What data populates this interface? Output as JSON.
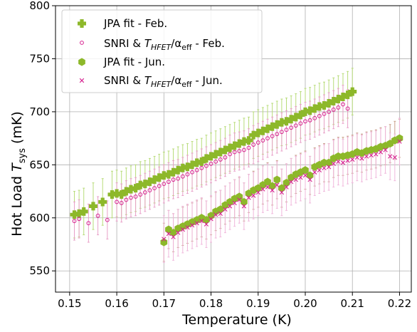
{
  "colors": {
    "jpa_feb": "#8db82a",
    "snri_feb": "#d6208f",
    "jpa_jun": "#8db82a",
    "snri_jun": "#d6208f",
    "err_feb_jpa": "#b8dc7a",
    "err_feb_snri": "#e8a0c8",
    "err_jun_jpa": "#c9a08a",
    "err_jun_snri": "#f0b8dc",
    "grid": "#b0b0b0"
  },
  "chart_data": {
    "type": "scatter",
    "xlabel": "Temperature (K)",
    "ylabel_main": "Hot Load ",
    "ylabel_italic": "T",
    "ylabel_sub": "sys",
    "ylabel_unit": " (mK)",
    "xlim": [
      0.147,
      0.2225
    ],
    "ylim": [
      530,
      800
    ],
    "xticks": [
      0.15,
      0.16,
      0.17,
      0.18,
      0.19,
      0.2,
      0.21,
      0.22
    ],
    "xtick_labels": [
      "0.15",
      "0.16",
      "0.17",
      "0.18",
      "0.19",
      "0.20",
      "0.21",
      "0.22"
    ],
    "yticks": [
      550,
      600,
      650,
      700,
      750,
      800
    ],
    "ytick_labels": [
      "550",
      "600",
      "650",
      "700",
      "750",
      "800"
    ],
    "grid": true,
    "legend_position": "top-left",
    "legend": [
      {
        "label_a": "JPA fit - Feb.",
        "label_b": "",
        "label_c": "",
        "label_d": ""
      },
      {
        "label_a": "SNRI & ",
        "label_b": "T",
        "label_c": "HFET",
        "label_d": "/α",
        "label_e": "eff",
        "label_f": " - Feb."
      },
      {
        "label_a": "JPA fit - Jun.",
        "label_b": "",
        "label_c": "",
        "label_d": ""
      },
      {
        "label_a": "SNRI & ",
        "label_b": "T",
        "label_c": "HFET",
        "label_d": "/α",
        "label_e": "eff",
        "label_f": " - Jun."
      }
    ],
    "series": [
      {
        "name": "JPA fit - Feb.",
        "marker": "plus-filled",
        "x": [
          0.151,
          0.152,
          0.153,
          0.155,
          0.157,
          0.159,
          0.16,
          0.161,
          0.162,
          0.163,
          0.164,
          0.165,
          0.166,
          0.167,
          0.168,
          0.169,
          0.17,
          0.171,
          0.172,
          0.173,
          0.174,
          0.175,
          0.176,
          0.177,
          0.178,
          0.179,
          0.18,
          0.181,
          0.182,
          0.183,
          0.184,
          0.185,
          0.186,
          0.187,
          0.188,
          0.189,
          0.19,
          0.191,
          0.192,
          0.193,
          0.194,
          0.195,
          0.196,
          0.197,
          0.198,
          0.199,
          0.2,
          0.201,
          0.202,
          0.203,
          0.204,
          0.205,
          0.206,
          0.207,
          0.208,
          0.209,
          0.21
        ],
        "y": [
          603,
          604,
          606,
          611,
          615,
          622,
          623,
          622,
          625,
          627,
          628,
          631,
          632,
          634,
          636,
          638,
          640,
          641,
          643,
          645,
          647,
          648,
          650,
          652,
          653,
          656,
          658,
          660,
          662,
          664,
          666,
          668,
          670,
          672,
          673,
          678,
          680,
          682,
          684,
          686,
          688,
          690,
          691,
          693,
          695,
          697,
          700,
          701,
          703,
          705,
          706,
          708,
          710,
          712,
          714,
          716,
          719
        ],
        "err": 22
      },
      {
        "name": "SNRI & T_HFET/α_eff - Feb.",
        "marker": "circle-open",
        "x": [
          0.151,
          0.152,
          0.154,
          0.156,
          0.158,
          0.16,
          0.161,
          0.162,
          0.163,
          0.164,
          0.165,
          0.166,
          0.167,
          0.168,
          0.169,
          0.17,
          0.171,
          0.172,
          0.173,
          0.174,
          0.175,
          0.176,
          0.177,
          0.178,
          0.179,
          0.18,
          0.181,
          0.182,
          0.183,
          0.184,
          0.185,
          0.186,
          0.187,
          0.188,
          0.189,
          0.19,
          0.191,
          0.192,
          0.193,
          0.194,
          0.195,
          0.196,
          0.197,
          0.198,
          0.199,
          0.2,
          0.201,
          0.202,
          0.203,
          0.204,
          0.205,
          0.206,
          0.207,
          0.208,
          0.209
        ],
        "y": [
          597,
          599,
          595,
          602,
          598,
          615,
          614,
          617,
          619,
          620,
          622,
          624,
          626,
          628,
          630,
          632,
          634,
          636,
          637,
          639,
          641,
          643,
          645,
          647,
          649,
          651,
          653,
          655,
          657,
          660,
          662,
          663,
          664,
          666,
          669,
          671,
          673,
          675,
          677,
          679,
          681,
          683,
          685,
          687,
          689,
          691,
          692,
          694,
          696,
          698,
          700,
          702,
          704,
          707,
          703
        ],
        "err": 18
      },
      {
        "name": "JPA fit - Jun.",
        "marker": "hexagon-filled",
        "x": [
          0.17,
          0.171,
          0.172,
          0.173,
          0.174,
          0.175,
          0.176,
          0.177,
          0.178,
          0.179,
          0.18,
          0.181,
          0.182,
          0.183,
          0.184,
          0.185,
          0.186,
          0.187,
          0.188,
          0.189,
          0.19,
          0.191,
          0.192,
          0.193,
          0.194,
          0.195,
          0.196,
          0.197,
          0.198,
          0.199,
          0.2,
          0.201,
          0.202,
          0.203,
          0.204,
          0.205,
          0.206,
          0.207,
          0.208,
          0.209,
          0.21,
          0.211,
          0.212,
          0.213,
          0.214,
          0.215,
          0.216,
          0.217,
          0.218,
          0.219,
          0.22
        ],
        "y": [
          577,
          589,
          586,
          590,
          592,
          594,
          596,
          598,
          600,
          598,
          602,
          606,
          608,
          612,
          615,
          618,
          620,
          615,
          623,
          626,
          628,
          631,
          634,
          630,
          636,
          628,
          633,
          638,
          641,
          643,
          645,
          640,
          648,
          650,
          652,
          652,
          656,
          658,
          658,
          659,
          660,
          662,
          661,
          663,
          664,
          665,
          667,
          668,
          670,
          673,
          675
        ],
        "err": 18
      },
      {
        "name": "SNRI & T_HFET/α_eff - Jun.",
        "marker": "x",
        "x": [
          0.17,
          0.171,
          0.172,
          0.173,
          0.174,
          0.175,
          0.176,
          0.177,
          0.178,
          0.179,
          0.18,
          0.181,
          0.182,
          0.183,
          0.184,
          0.185,
          0.186,
          0.187,
          0.188,
          0.189,
          0.19,
          0.191,
          0.192,
          0.193,
          0.194,
          0.195,
          0.196,
          0.197,
          0.198,
          0.199,
          0.2,
          0.201,
          0.202,
          0.203,
          0.204,
          0.205,
          0.206,
          0.207,
          0.208,
          0.209,
          0.21,
          0.211,
          0.212,
          0.213,
          0.214,
          0.215,
          0.216,
          0.217,
          0.218,
          0.219,
          0.22
        ],
        "y": [
          580,
          585,
          582,
          586,
          589,
          591,
          593,
          595,
          597,
          594,
          599,
          603,
          604,
          608,
          611,
          614,
          617,
          611,
          619,
          621,
          624,
          627,
          629,
          626,
          631,
          624,
          629,
          634,
          636,
          638,
          640,
          636,
          643,
          645,
          647,
          648,
          651,
          653,
          652,
          654,
          655,
          657,
          656,
          658,
          659,
          660,
          662,
          664,
          658,
          657,
          672
        ],
        "err": 22
      }
    ]
  }
}
